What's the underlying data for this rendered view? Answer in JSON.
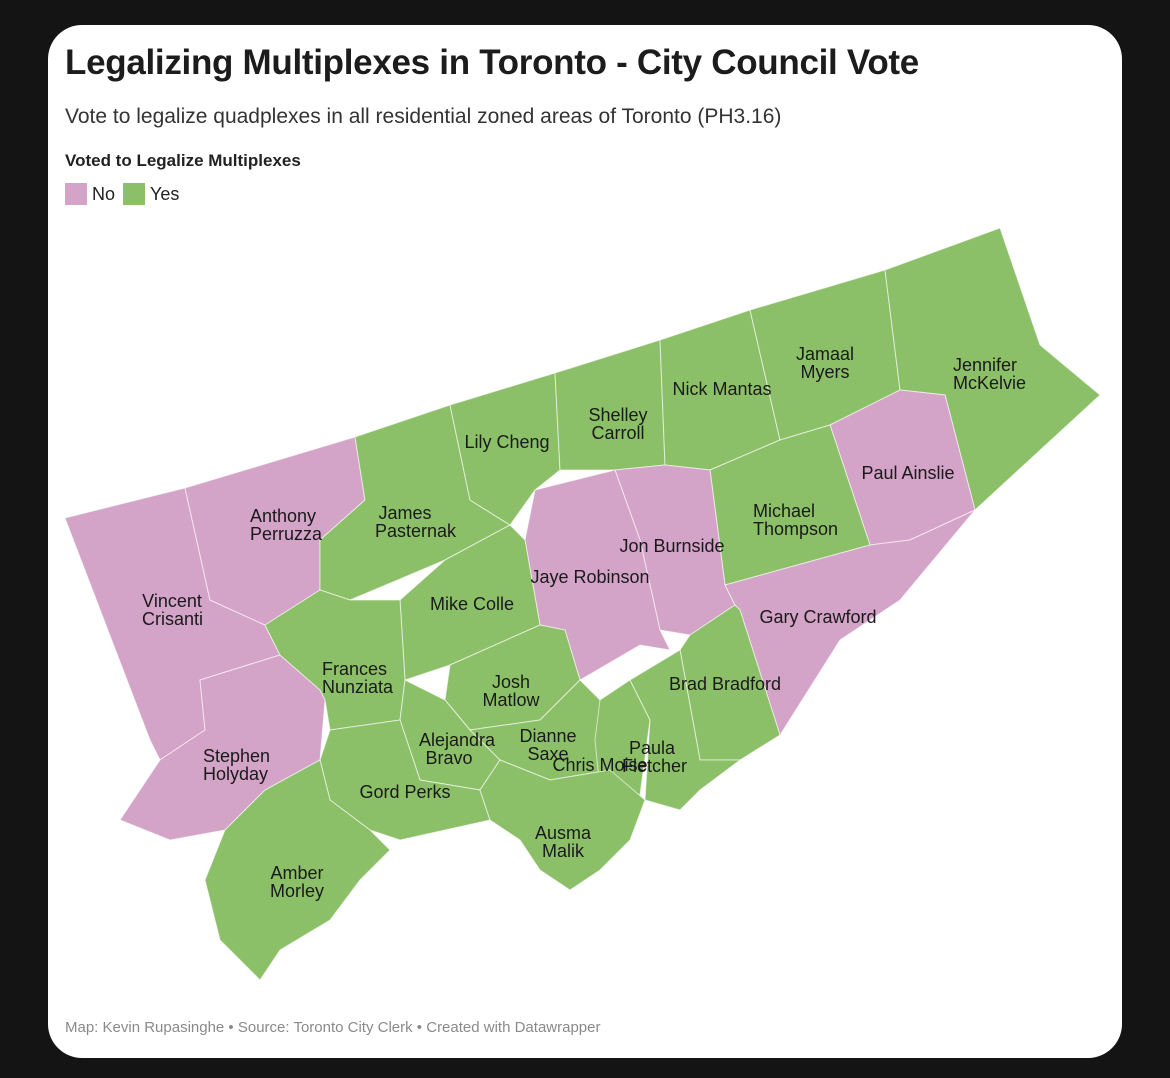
{
  "header": {
    "title": "Legalizing Multiplexes in Toronto - City Council Vote",
    "subtitle": "Vote to legalize quadplexes in all residential zoned areas of Toronto (PH3.16)"
  },
  "legend": {
    "title": "Voted to Legalize Multiplexes",
    "items": [
      {
        "label": "No",
        "color": "#d3a3c8"
      },
      {
        "label": "Yes",
        "color": "#8cc068"
      }
    ]
  },
  "wards": [
    {
      "label": "Vincent Crisanti",
      "vote": "No"
    },
    {
      "label": "Anthony Perruzza",
      "vote": "No"
    },
    {
      "label": "Stephen Holyday",
      "vote": "No"
    },
    {
      "label": "James Pasternak",
      "vote": "Yes"
    },
    {
      "label": "Lily Cheng",
      "vote": "Yes"
    },
    {
      "label": "Shelley Carroll",
      "vote": "Yes"
    },
    {
      "label": "Nick Mantas",
      "vote": "Yes"
    },
    {
      "label": "Jamaal Myers",
      "vote": "Yes"
    },
    {
      "label": "Jennifer McKelvie",
      "vote": "Yes"
    },
    {
      "label": "Paul Ainslie",
      "vote": "No"
    },
    {
      "label": "Michael Thompson",
      "vote": "Yes"
    },
    {
      "label": "Jon Burnside",
      "vote": "No"
    },
    {
      "label": "Jaye Robinson",
      "vote": "No"
    },
    {
      "label": "Gary Crawford",
      "vote": "No"
    },
    {
      "label": "Brad Bradford",
      "vote": "Yes"
    },
    {
      "label": "Mike Colle",
      "vote": "Yes"
    },
    {
      "label": "Frances Nunziata",
      "vote": "Yes"
    },
    {
      "label": "Josh Matlow",
      "vote": "Yes"
    },
    {
      "label": "Alejandra Bravo",
      "vote": "Yes"
    },
    {
      "label": "Dianne Saxe",
      "vote": "Yes"
    },
    {
      "label": "Chris Moise",
      "vote": "Yes"
    },
    {
      "label": "Paula Fletcher",
      "vote": "Yes"
    },
    {
      "label": "Gord Perks",
      "vote": "Yes"
    },
    {
      "label": "Ausma Malik",
      "vote": "Yes"
    },
    {
      "label": "Amber Morley",
      "vote": "Yes"
    }
  ],
  "footer": "Map: Kevin Rupasinghe • Source: Toronto City Clerk • Created with Datawrapper"
}
